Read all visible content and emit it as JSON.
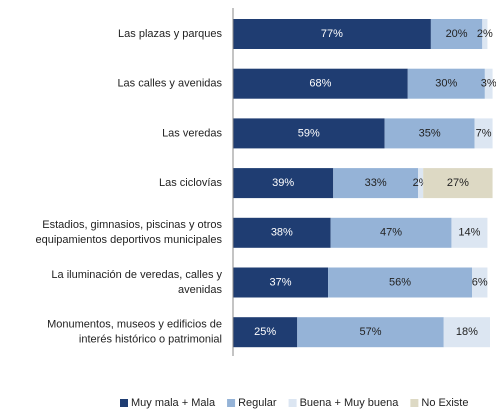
{
  "chart_data": {
    "type": "stacked-bar-horizontal",
    "categories": [
      [
        "Las plazas y parques"
      ],
      [
        "Las calles y avenidas"
      ],
      [
        "Las veredas"
      ],
      [
        "Las ciclovías"
      ],
      [
        "Estadios, gimnasios, piscinas y otros",
        "equipamientos deportivos municipales"
      ],
      [
        "La iluminación de veredas, calles y",
        "avenidas"
      ],
      [
        "Monumentos, museos y edificios de",
        "interés histórico o patrimonial"
      ]
    ],
    "series": [
      {
        "name": "Muy mala + Mala",
        "color": "#1f3d72",
        "label_color": "#ffffff",
        "values": [
          77,
          68,
          59,
          39,
          38,
          37,
          25
        ],
        "value_labels": [
          "77%",
          "68%",
          "59%",
          "39%",
          "38%",
          "37%",
          "25%"
        ]
      },
      {
        "name": "Regular",
        "color": "#95b3d7",
        "label_color": "#222222",
        "values": [
          20,
          30,
          35,
          33,
          47,
          56,
          57
        ],
        "value_labels": [
          "20%",
          "30%",
          "35%",
          "33%",
          "47%",
          "56%",
          "57%"
        ]
      },
      {
        "name": "Buena + Muy buena",
        "color": "#dce6f2",
        "label_color": "#222222",
        "values": [
          2,
          3,
          7,
          2,
          14,
          6,
          18
        ],
        "value_labels": [
          "2%",
          "3%",
          "7%",
          "2%",
          "14%",
          "6%",
          "18%"
        ]
      },
      {
        "name": "No Existe",
        "color": "#ddd9c4",
        "label_color": "#222222",
        "values": [
          null,
          null,
          null,
          27,
          null,
          null,
          null
        ],
        "value_labels": [
          null,
          null,
          null,
          "27%",
          null,
          null,
          null
        ]
      }
    ],
    "xlim": [
      0,
      100
    ],
    "legend": "bottom"
  }
}
